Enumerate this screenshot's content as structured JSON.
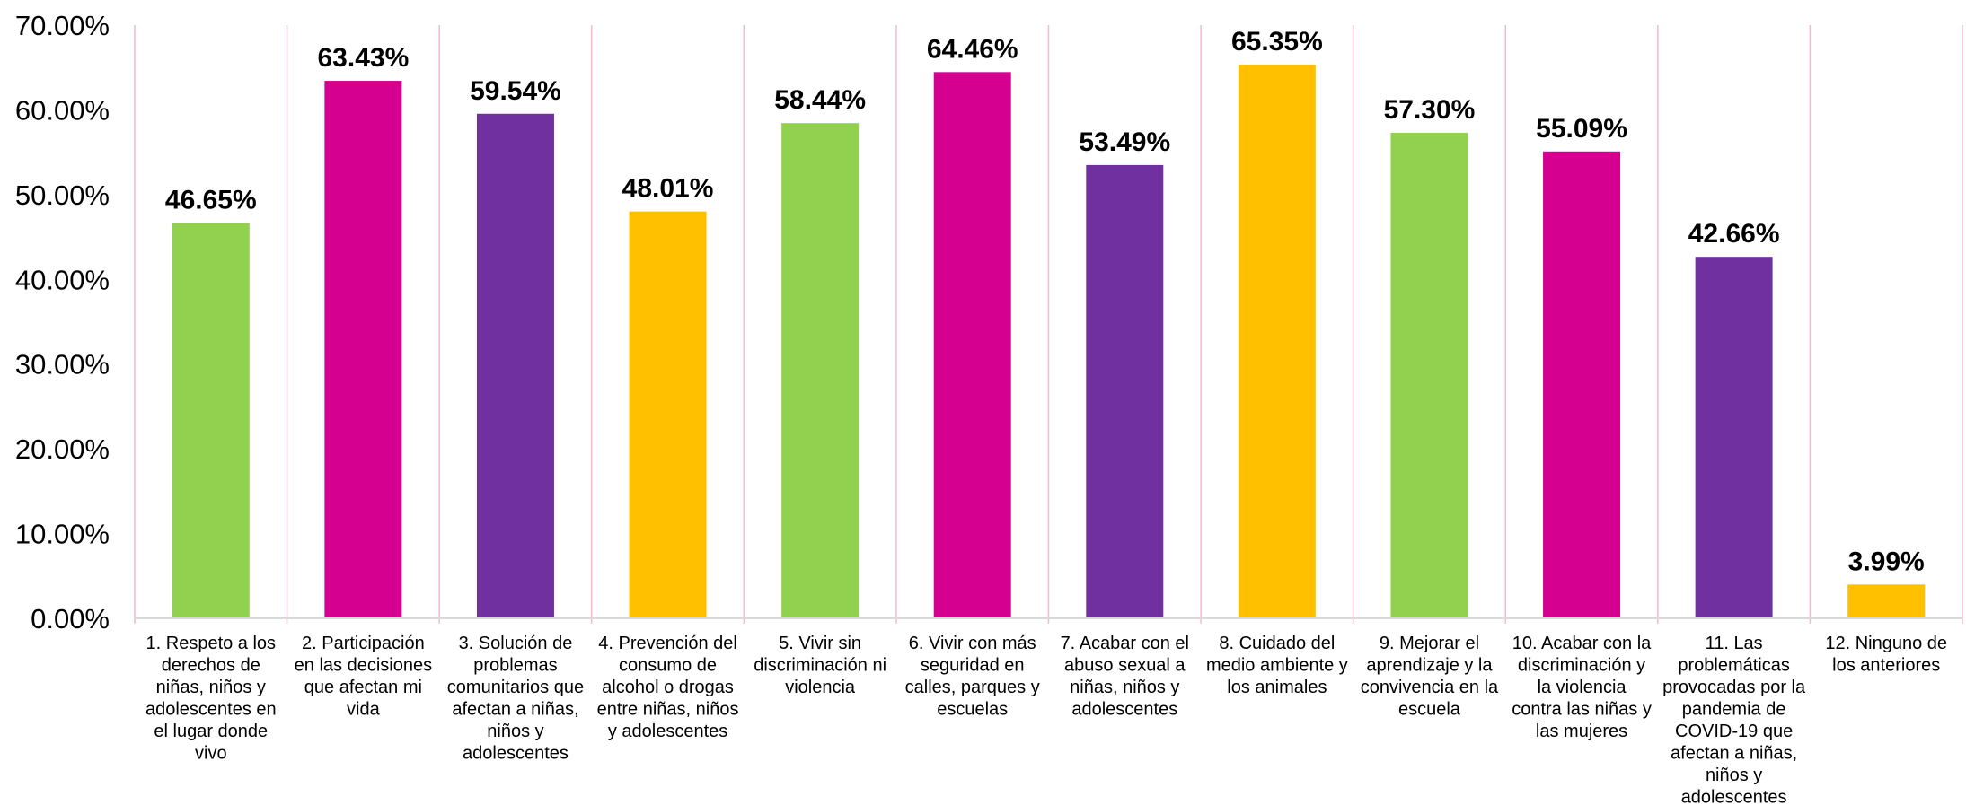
{
  "chart_data": {
    "type": "bar",
    "title": "",
    "xlabel": "",
    "ylabel": "",
    "ylim": [
      0,
      70
    ],
    "yticks": [
      "0.00%",
      "10.00%",
      "20.00%",
      "30.00%",
      "40.00%",
      "50.00%",
      "60.00%",
      "70.00%"
    ],
    "grid": "vertical category separators (pink)",
    "legend": "none",
    "colors": {
      "green": "#92D050",
      "magenta": "#D5008F",
      "purple": "#7030A0",
      "yellow": "#FFC000",
      "separator": "#F4B8D4",
      "axis": "#D9D9D9"
    },
    "categories": [
      "1. Respeto a los derechos de niñas, niños y adolescentes en el lugar donde vivo",
      "2. Participación en las decisiones que afectan mi vida",
      "3. Solución de problemas comunitarios que afectan a niñas, niños y adolescentes",
      "4. Prevención del consumo de alcohol o drogas entre niñas, niños y adolescentes",
      "5. Vivir sin discriminación ni violencia",
      "6. Vivir con más seguridad en calles, parques y escuelas",
      "7. Acabar con el abuso sexual a niñas, niños y adolescentes",
      "8. Cuidado del medio ambiente y los animales",
      "9. Mejorar el aprendizaje y la convivencia en la escuela",
      "10. Acabar con la discriminación y la violencia contra las niñas y las mujeres",
      "11. Las problemáticas provocadas por la pandemia de COVID-19 que afectan a niñas, niños y adolescentes",
      "12. Ninguno de los anteriores"
    ],
    "category_lines": [
      [
        "1. Respeto a los",
        "derechos de",
        "niñas, niños y",
        "adolescentes en",
        "el lugar donde",
        "vivo"
      ],
      [
        "2. Participación",
        "en las decisiones",
        "que afectan mi",
        "vida"
      ],
      [
        "3. Solución de",
        "problemas",
        "comunitarios que",
        "afectan a niñas,",
        "niños y",
        "adolescentes"
      ],
      [
        "4. Prevención del",
        "consumo de",
        "alcohol o drogas",
        "entre niñas, niños",
        "y adolescentes"
      ],
      [
        "5. Vivir sin",
        "discriminación ni",
        "violencia"
      ],
      [
        "6. Vivir con más",
        "seguridad en",
        "calles, parques y",
        "escuelas"
      ],
      [
        "7. Acabar con el",
        "abuso sexual a",
        "niñas, niños y",
        "adolescentes"
      ],
      [
        "8. Cuidado del",
        "medio ambiente y",
        "los animales"
      ],
      [
        "9. Mejorar el",
        "aprendizaje y la",
        "convivencia en la",
        "escuela"
      ],
      [
        "10. Acabar con la",
        "discriminación y",
        "la violencia",
        "contra las niñas y",
        "las mujeres"
      ],
      [
        "11. Las",
        "problemáticas",
        "provocadas por la",
        "pandemia de",
        "COVID-19 que",
        "afectan a niñas,",
        "niños y",
        "adolescentes"
      ],
      [
        "12. Ninguno de",
        "los anteriores"
      ]
    ],
    "values": [
      46.65,
      63.43,
      59.54,
      48.01,
      58.44,
      64.46,
      53.49,
      65.35,
      57.3,
      55.09,
      42.66,
      3.99
    ],
    "value_labels": [
      "46.65%",
      "63.43%",
      "59.54%",
      "48.01%",
      "58.44%",
      "64.46%",
      "53.49%",
      "65.35%",
      "57.30%",
      "55.09%",
      "42.66%",
      "3.99%"
    ],
    "bar_colors": [
      "green",
      "magenta",
      "purple",
      "yellow",
      "green",
      "magenta",
      "purple",
      "yellow",
      "green",
      "magenta",
      "purple",
      "yellow"
    ]
  }
}
